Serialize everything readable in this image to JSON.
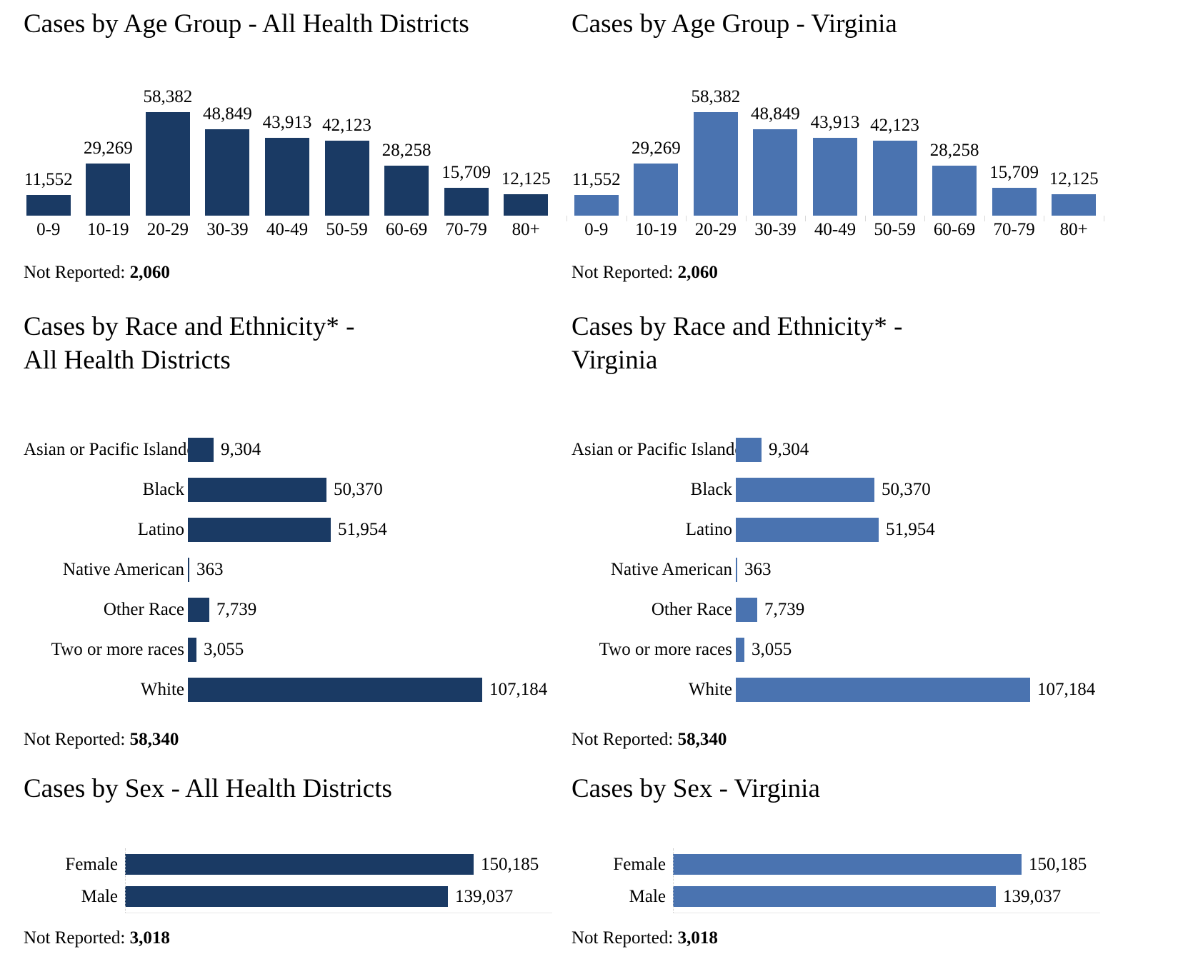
{
  "labels": {
    "not_reported_prefix": "Not Reported: "
  },
  "colors": {
    "all_districts_bar": "#1a3a64",
    "virginia_bar": "#4a73b0",
    "axis_tick": "#d9d9d9",
    "axis_line": "#e8e8e8",
    "text": "#000000",
    "background": "#ffffff"
  },
  "chart_data": [
    {
      "id": "age-all-districts",
      "type": "bar",
      "orientation": "vertical",
      "title": "Cases by Age Group - All Health Districts",
      "categories": [
        "0-9",
        "10-19",
        "20-29",
        "30-39",
        "40-49",
        "50-59",
        "60-69",
        "70-79",
        "80+"
      ],
      "values": [
        11552,
        29269,
        58382,
        48849,
        43913,
        42123,
        28258,
        15709,
        12125
      ],
      "value_labels": [
        "11,552",
        "29,269",
        "58,382",
        "48,849",
        "43,913",
        "42,123",
        "28,258",
        "15,709",
        "12,125"
      ],
      "not_reported": "2,060",
      "bar_color": "#1a3a64",
      "ticks": false,
      "grid": false,
      "legend": false
    },
    {
      "id": "age-virginia",
      "type": "bar",
      "orientation": "vertical",
      "title": "Cases by Age Group - Virginia",
      "categories": [
        "0-9",
        "10-19",
        "20-29",
        "30-39",
        "40-49",
        "50-59",
        "60-69",
        "70-79",
        "80+"
      ],
      "values": [
        11552,
        29269,
        58382,
        48849,
        43913,
        42123,
        28258,
        15709,
        12125
      ],
      "value_labels": [
        "11,552",
        "29,269",
        "58,382",
        "48,849",
        "43,913",
        "42,123",
        "28,258",
        "15,709",
        "12,125"
      ],
      "not_reported": "2,060",
      "bar_color": "#4a73b0",
      "ticks": true,
      "grid": false,
      "legend": false
    },
    {
      "id": "race-all-districts",
      "type": "bar",
      "orientation": "horizontal",
      "title": "Cases by Race and Ethnicity* - All Health Districts",
      "title_lines": [
        "Cases by Race and Ethnicity* -",
        "All Health Districts"
      ],
      "categories": [
        "Asian or Pacific Islander",
        "Black",
        "Latino",
        "Native American",
        "Other Race",
        "Two or more races",
        "White"
      ],
      "values": [
        9304,
        50370,
        51954,
        363,
        7739,
        3055,
        107184
      ],
      "value_labels": [
        "9,304",
        "50,370",
        "51,954",
        "363",
        "7,739",
        "3,055",
        "107,184"
      ],
      "not_reported": "58,340",
      "bar_color": "#1a3a64",
      "ticks": false,
      "grid": false,
      "legend": false
    },
    {
      "id": "race-virginia",
      "type": "bar",
      "orientation": "horizontal",
      "title": "Cases by Race and Ethnicity* - Virginia",
      "title_lines": [
        "Cases by Race and Ethnicity* -",
        "Virginia"
      ],
      "categories": [
        "Asian or Pacific Islander",
        "Black",
        "Latino",
        "Native American",
        "Other Race",
        "Two or more races",
        "White"
      ],
      "values": [
        9304,
        50370,
        51954,
        363,
        7739,
        3055,
        107184
      ],
      "value_labels": [
        "9,304",
        "50,370",
        "51,954",
        "363",
        "7,739",
        "3,055",
        "107,184"
      ],
      "not_reported": "58,340",
      "bar_color": "#4a73b0",
      "ticks": false,
      "grid": false,
      "legend": false
    },
    {
      "id": "sex-all-districts",
      "type": "bar",
      "orientation": "horizontal",
      "title": "Cases by Sex - All Health Districts",
      "categories": [
        "Female",
        "Male"
      ],
      "values": [
        150185,
        139037
      ],
      "value_labels": [
        "150,185",
        "139,037"
      ],
      "not_reported": "3,018",
      "bar_color": "#1a3a64",
      "ticks": false,
      "axis": true,
      "grid": false,
      "legend": false
    },
    {
      "id": "sex-virginia",
      "type": "bar",
      "orientation": "horizontal",
      "title": "Cases by Sex - Virginia",
      "categories": [
        "Female",
        "Male"
      ],
      "values": [
        150185,
        139037
      ],
      "value_labels": [
        "150,185",
        "139,037"
      ],
      "not_reported": "3,018",
      "bar_color": "#4a73b0",
      "ticks": false,
      "axis": true,
      "grid": false,
      "legend": false
    }
  ]
}
